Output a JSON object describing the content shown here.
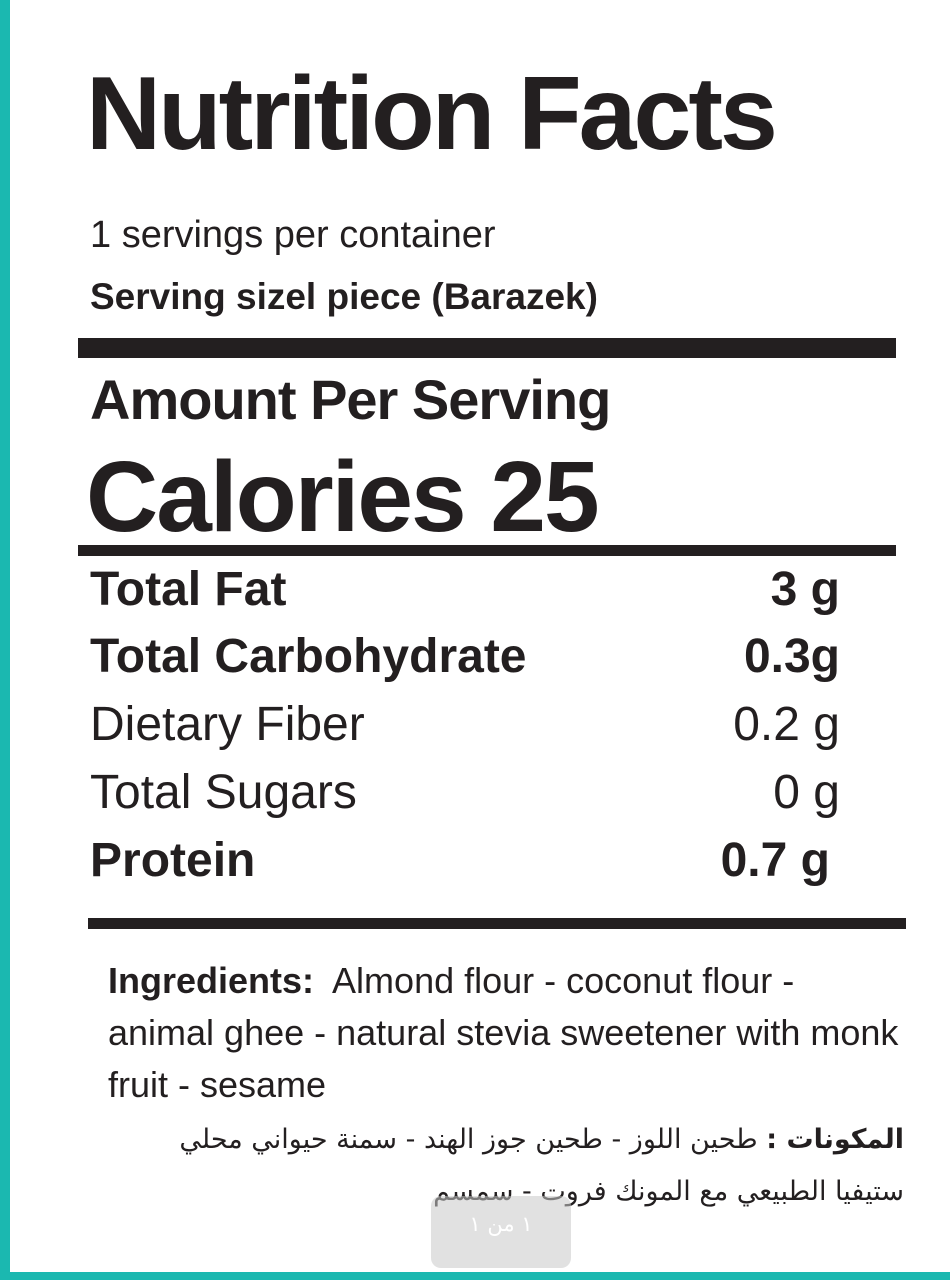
{
  "label": {
    "title": "Nutrition Facts",
    "servings_per_container": "1 servings per container",
    "serving_size": "Serving sizel piece (Barazek)",
    "amount_per_serving": "Amount Per Serving",
    "calories": "Calories 25",
    "nutrients": [
      {
        "name": "Total Fat",
        "amount": "3 g",
        "bold": true
      },
      {
        "name": "Total Carbohydrate",
        "amount": "0.3g",
        "bold": true
      },
      {
        "name": "Dietary Fiber",
        "amount": "0.2 g",
        "bold": false
      },
      {
        "name": "Total Sugars",
        "amount": "0 g",
        "bold": false
      },
      {
        "name": "Protein",
        "amount": "0.7 g",
        "bold": true
      }
    ],
    "ingredients_label": "Ingredients:",
    "ingredients_text": "Almond flour - coconut flour - animal ghee - natural stevia sweetener with monk fruit - sesame",
    "arabic_label": "المكونات :",
    "arabic_text": "طحين اللوز - طحين جوز الهند - سمنة حيواني محلي ستيفيا الطبيعي مع المونك فروت - سمسم"
  },
  "viewer": {
    "page_indicator": "١ من ١"
  },
  "colors": {
    "border": "#1bb8b0",
    "ink": "#231f20"
  }
}
